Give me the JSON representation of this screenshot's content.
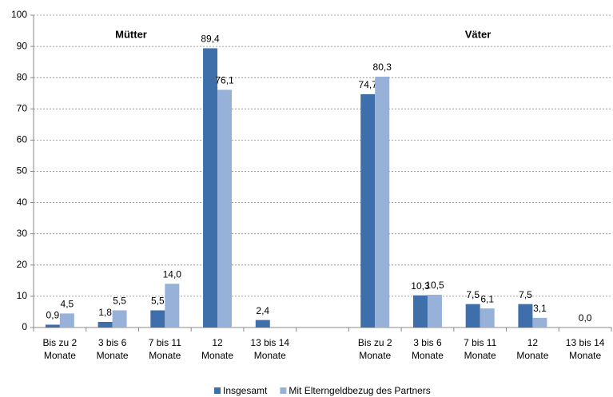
{
  "chart_data": {
    "type": "bar",
    "annotations": [
      "Mütter",
      "Väter"
    ],
    "categories": [
      "Bis zu 2\nMonate",
      "3 bis 6\nMonate",
      "7 bis 11\nMonate",
      "12\nMonate",
      "13 bis 14\nMonate",
      null,
      "Bis zu 2\nMonate",
      "3 bis 6\nMonate",
      "7 bis 11\nMonate",
      "12\nMonate",
      "13 bis 14\nMonate"
    ],
    "series": [
      {
        "name": "Insgesamt",
        "color": "#3f6faa",
        "values": [
          0.9,
          1.8,
          5.5,
          89.4,
          2.4,
          null,
          74.7,
          10.3,
          7.5,
          7.5,
          0.0
        ],
        "value_labels": [
          "0,9",
          "1,8",
          "5,5",
          "89,4",
          "2,4",
          null,
          "74,7",
          "10,3",
          "7,5",
          "7,5",
          "0,0"
        ]
      },
      {
        "name": "Mit Elterngeldbezug des Partners",
        "color": "#98b1d9",
        "values": [
          4.5,
          5.5,
          14.0,
          76.1,
          null,
          null,
          80.3,
          10.5,
          6.1,
          3.1,
          null
        ],
        "value_labels": [
          "4,5",
          "5,5",
          "14,0",
          "76,1",
          null,
          null,
          "80,3",
          "10,5",
          "6,1",
          "3,1",
          null
        ]
      }
    ],
    "ylim": [
      0,
      100
    ],
    "yticks": [
      0,
      10,
      20,
      30,
      40,
      50,
      60,
      70,
      80,
      90,
      100
    ],
    "grid": true
  }
}
